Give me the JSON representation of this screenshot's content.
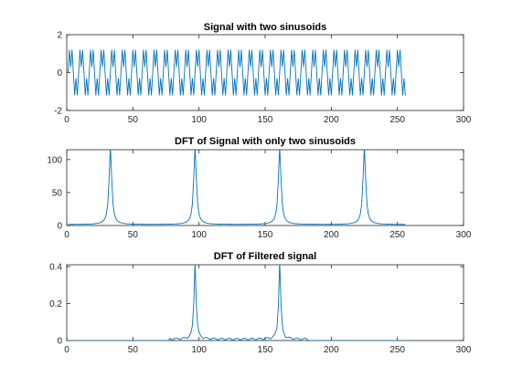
{
  "colors": {
    "line": "#0072BD",
    "axes": "#262626",
    "background": "#ffffff"
  },
  "chart_data": [
    {
      "type": "line",
      "title": "Signal with two sinusoids",
      "xlabel": "",
      "ylabel": "",
      "xlim": [
        0,
        300
      ],
      "ylim": [
        -2,
        2
      ],
      "xticks": [
        0,
        50,
        100,
        150,
        200,
        250,
        300
      ],
      "yticks": [
        -2,
        0,
        2
      ],
      "xtick_labels": [
        "0",
        "50",
        "100",
        "150",
        "200",
        "250",
        "300"
      ],
      "ytick_labels": [
        "-2",
        "0",
        "2"
      ],
      "grid": false,
      "series": [
        {
          "generator": "sum_of_sinusoids",
          "n_points": 256,
          "x_start": 1,
          "components": [
            {
              "amplitude": 1,
              "cycles_per_sample": 0.125
            },
            {
              "amplitude": 0.7,
              "cycles_per_sample": 0.375
            }
          ]
        }
      ]
    },
    {
      "type": "line",
      "title": "DFT of Signal with only two sinusoids",
      "xlabel": "",
      "ylabel": "",
      "xlim": [
        0,
        300
      ],
      "ylim": [
        0,
        115
      ],
      "xticks": [
        0,
        50,
        100,
        150,
        200,
        250,
        300
      ],
      "yticks": [
        0,
        50,
        100
      ],
      "xtick_labels": [
        "0",
        "50",
        "100",
        "150",
        "200",
        "250",
        "300"
      ],
      "ytick_labels": [
        "0",
        "50",
        "100"
      ],
      "grid": false,
      "series": [
        {
          "generator": "spectrum_peaks",
          "n_points": 256,
          "x_start": 1,
          "baseline": 1.5,
          "peaks": [
            {
              "x": 33,
              "height": 118,
              "width": 1.2
            },
            {
              "x": 97,
              "height": 118,
              "width": 1.2
            },
            {
              "x": 161,
              "height": 118,
              "width": 1.2
            },
            {
              "x": 225,
              "height": 118,
              "width": 1.2
            }
          ]
        }
      ]
    },
    {
      "type": "line",
      "title": "DFT of Filtered signal",
      "xlabel": "",
      "ylabel": "",
      "xlim": [
        0,
        300
      ],
      "ylim": [
        0,
        0.41
      ],
      "xticks": [
        0,
        50,
        100,
        150,
        200,
        250,
        300
      ],
      "yticks": [
        0,
        0.2,
        0.4
      ],
      "xtick_labels": [
        "0",
        "50",
        "100",
        "150",
        "200",
        "250",
        "300"
      ],
      "ytick_labels": [
        "0",
        "0.2",
        "0.4"
      ],
      "grid": false,
      "series": [
        {
          "generator": "filtered_spectrum",
          "n_points": 256,
          "x_start": 1,
          "active_range": [
            78,
            182
          ],
          "peaks": [
            {
              "x": 97,
              "height": 0.42,
              "width": 0.9
            },
            {
              "x": 161,
              "height": 0.42,
              "width": 0.9
            }
          ],
          "ripple_amplitude": 0.012
        }
      ]
    }
  ]
}
